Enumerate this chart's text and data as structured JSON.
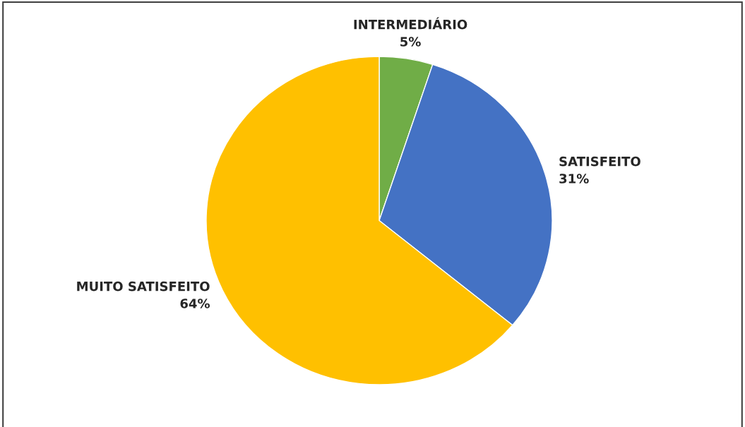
{
  "chart_data": {
    "type": "pie",
    "categories": [
      "INTERMEDIÁRIO",
      "SATISFEITO",
      "MUITO SATISFEITO"
    ],
    "values": [
      5,
      31,
      64
    ],
    "colors": [
      "#70ad47",
      "#4472c4",
      "#ffc000"
    ],
    "value_labels": [
      "5%",
      "31%",
      "64%"
    ]
  }
}
